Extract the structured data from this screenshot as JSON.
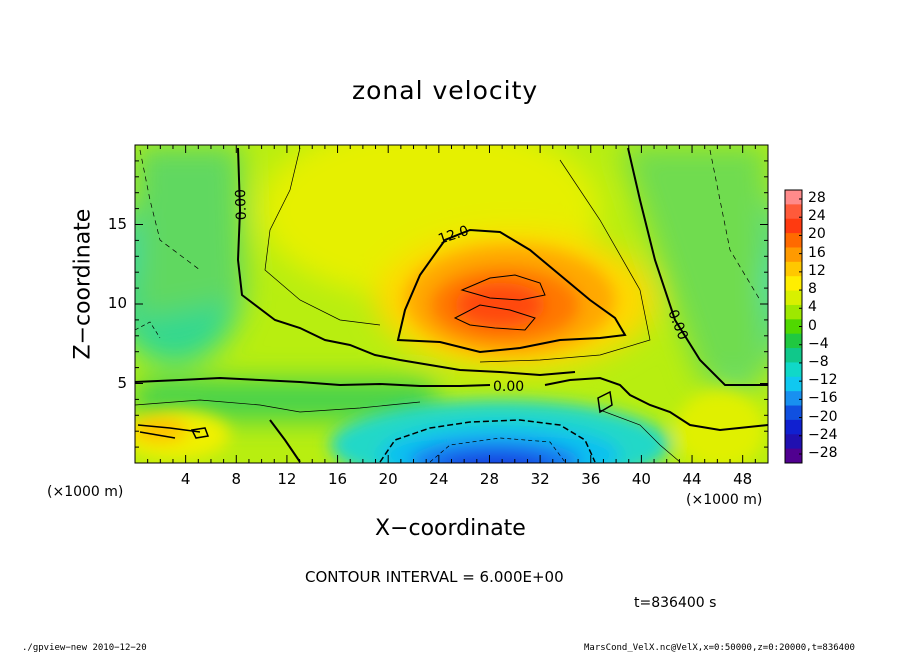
{
  "chart_data": {
    "type": "heatmap",
    "title": "zonal velocity",
    "xlabel": "X−coordinate",
    "ylabel": "Z−coordinate",
    "x_unit_left": "(×1000 m)",
    "x_unit_right": "(×1000 m)",
    "xlim": [
      0,
      50
    ],
    "ylim": [
      0,
      20
    ],
    "x_ticks": [
      "4",
      "8",
      "12",
      "16",
      "20",
      "24",
      "28",
      "32",
      "36",
      "40",
      "44",
      "48"
    ],
    "y_ticks": [
      "5",
      "10",
      "15"
    ],
    "contour_interval": "CONTOUR INTERVAL = 6.000E+00",
    "contour_labels": [
      "0.00",
      "12.0",
      "0.00",
      "0.00"
    ],
    "time_label": "t=836400 s",
    "colorbar": {
      "labels": [
        "28",
        "24",
        "20",
        "16",
        "12",
        "8",
        "4",
        "0",
        "−4",
        "−8",
        "−12",
        "−16",
        "−20",
        "−24",
        "−28"
      ],
      "colors": [
        "#ff8a8a",
        "#ff5a3a",
        "#ff3a10",
        "#ff6a00",
        "#ff9a00",
        "#ffc800",
        "#ffee00",
        "#d8f000",
        "#9ee800",
        "#50d800",
        "#20c840",
        "#10c88a",
        "#10d8c8",
        "#10c8f0",
        "#1890f0",
        "#1050e0",
        "#1020d0",
        "#2010b0",
        "#500090"
      ]
    }
  },
  "footer": {
    "left": "./gpview−new  2010−12−20",
    "right": "MarsCond_VelX.nc@VelX,x=0:50000,z=0:20000,t=836400"
  }
}
